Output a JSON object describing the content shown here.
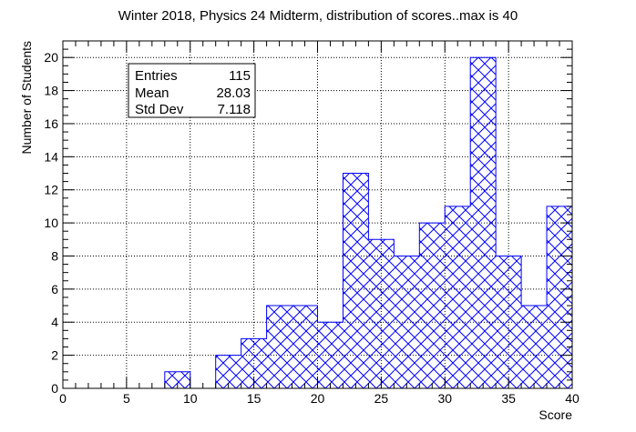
{
  "chart_data": {
    "type": "bar",
    "title": "Winter 2018, Physics 24 Midterm, distribution of scores..max is 40",
    "xlabel": "Score",
    "ylabel": "Number of Students",
    "xlim": [
      0,
      40
    ],
    "ylim": [
      0,
      21
    ],
    "bin_width": 2,
    "bin_edges_start": [
      0,
      2,
      4,
      6,
      8,
      10,
      12,
      14,
      16,
      18,
      20,
      22,
      24,
      26,
      28,
      30,
      32,
      34,
      36,
      38
    ],
    "values": [
      0,
      0,
      0,
      0,
      1,
      0,
      2,
      3,
      5,
      5,
      4,
      13,
      9,
      8,
      10,
      11,
      20,
      8,
      5,
      11
    ],
    "x_ticks": [
      "0",
      "5",
      "10",
      "15",
      "20",
      "25",
      "30",
      "35",
      "40"
    ],
    "x_tick_values": [
      0,
      5,
      10,
      15,
      20,
      25,
      30,
      35,
      40
    ],
    "y_ticks": [
      "0",
      "2",
      "4",
      "6",
      "8",
      "10",
      "12",
      "14",
      "16",
      "18",
      "20"
    ],
    "y_tick_values": [
      0,
      2,
      4,
      6,
      8,
      10,
      12,
      14,
      16,
      18,
      20
    ],
    "grid": true,
    "fill": "cross-hatch",
    "color": "#0000ff",
    "stats": {
      "rows": [
        {
          "label": "Entries",
          "value": "115"
        },
        {
          "label": "Mean",
          "value": "28.03"
        },
        {
          "label": "Std Dev",
          "value": "7.118"
        }
      ],
      "placement": "top-left"
    }
  }
}
